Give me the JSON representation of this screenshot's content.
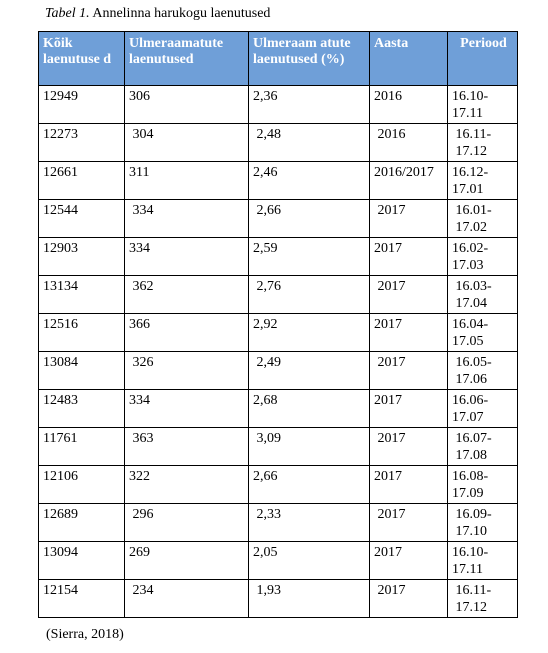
{
  "caption": {
    "label": "Tabel 1.",
    "text": "Annelinna harukogu laenutused"
  },
  "table": {
    "headers": [
      "Kõik laenutuse d",
      "Ulmeraamatute laenutused",
      "Ulmeraam atute laenutused (%)",
      "Aasta",
      "Periood"
    ],
    "rows": [
      [
        "12949",
        "306",
        "2,36",
        "2016",
        "16.10-\n17.11"
      ],
      [
        "12273",
        " 304",
        " 2,48",
        " 2016",
        " 16.11-\n 17.12"
      ],
      [
        "12661",
        "311",
        "2,46",
        "2016/2017",
        "16.12-\n17.01"
      ],
      [
        "12544",
        " 334",
        " 2,66",
        " 2017",
        " 16.01-\n 17.02"
      ],
      [
        "12903",
        "334",
        "2,59",
        "2017",
        "16.02-\n17.03"
      ],
      [
        "13134",
        " 362",
        " 2,76",
        " 2017",
        " 16.03-\n 17.04"
      ],
      [
        "12516",
        "366",
        "2,92",
        "2017",
        "16.04-\n17.05"
      ],
      [
        "13084",
        " 326",
        " 2,49",
        " 2017",
        " 16.05-\n 17.06"
      ],
      [
        "12483",
        "334",
        "2,68",
        "2017",
        "16.06-\n17.07"
      ],
      [
        "11761",
        " 363",
        " 3,09",
        " 2017",
        " 16.07-\n 17.08"
      ],
      [
        "12106",
        "322",
        "2,66",
        "2017",
        "16.08-\n17.09"
      ],
      [
        "12689",
        " 296",
        " 2,33",
        " 2017",
        " 16.09-\n 17.10"
      ],
      [
        "13094",
        "269",
        "2,05",
        "2017",
        "16.10-\n17.11"
      ],
      [
        "12154",
        " 234",
        " 1,93",
        " 2017",
        " 16.11-\n 17.12"
      ]
    ]
  },
  "source": "(Sierra, 2018)",
  "colors": {
    "header_bg": "#6f9fd8",
    "header_text": "#ffffff",
    "border": "#000000"
  }
}
